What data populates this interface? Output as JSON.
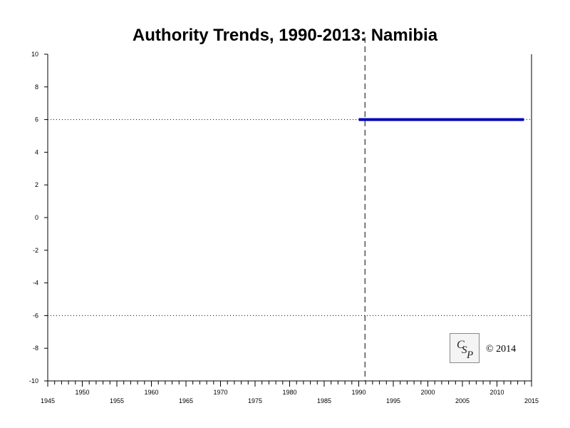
{
  "chart_data": {
    "type": "line",
    "title": "Authority Trends, 1990-2013: Namibia",
    "xlabel": "",
    "ylabel": "",
    "xlim": [
      1945,
      2015
    ],
    "ylim": [
      -10,
      10
    ],
    "x_ticks_upper": [
      "1950",
      "1960",
      "1970",
      "1980",
      "1990",
      "2000",
      "2010"
    ],
    "x_ticks_lower": [
      "1945",
      "1955",
      "1965",
      "1975",
      "1985",
      "1995",
      "2005",
      "2015"
    ],
    "y_ticks": [
      "10",
      "8",
      "6",
      "4",
      "2",
      "0",
      "-2",
      "-4",
      "-6",
      "-8",
      "-10"
    ],
    "reference_lines": [
      6,
      -6
    ],
    "event_line_x": 1990.9,
    "series": [
      {
        "color": "#0000b4",
        "x": [
          1990,
          2013.9
        ],
        "values": [
          6,
          6
        ]
      }
    ],
    "grid": false
  },
  "logo": {
    "text": "CSP"
  },
  "copyright": "© 2014"
}
